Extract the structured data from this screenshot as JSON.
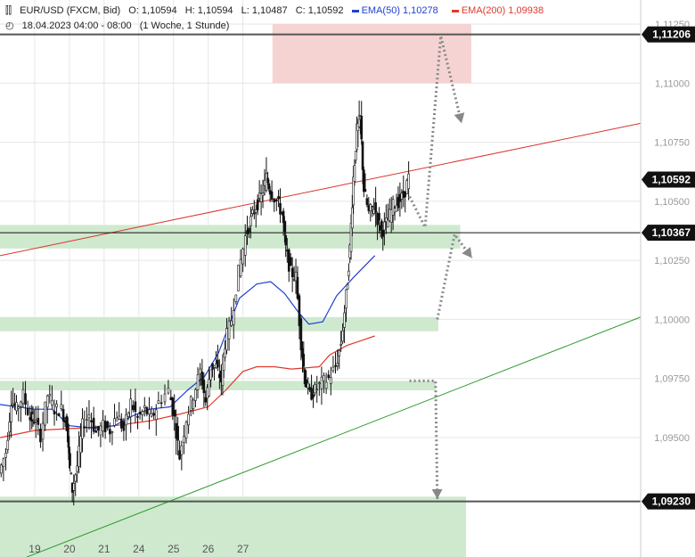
{
  "header": {
    "instrument": "EUR/USD (FXCM, Bid)",
    "open": "O: 1,10594",
    "high": "H: 1,10594",
    "low": "L: 1,10487",
    "close": "C: 1,10592",
    "ema50_label": "EMA(50)",
    "ema50_value": "1,10278",
    "ema200_label": "EMA(200)",
    "ema200_value": "1,09938",
    "timestamp": "18.04.2023 04:00 - 08:00",
    "period": "(1 Woche, 1 Stunde)"
  },
  "colors": {
    "ema50": "#1f3fd1",
    "ema200": "#e0392b",
    "support_zone": "#cfe9cf",
    "resistance_zone": "#f5d3d3",
    "channel_upper": "#d9342b",
    "channel_lower": "#2f9a2f",
    "price_tag": "#111111",
    "projection": "#888888"
  },
  "chart_data": {
    "type": "candlestick",
    "x_tick_labels": [
      "19",
      "20",
      "21",
      "24",
      "25",
      "26",
      "27"
    ],
    "y_tick_labels": [
      "1,11250",
      "1,11000",
      "1,10750",
      "1,10500",
      "1,10250",
      "1,10000",
      "1,09750",
      "1,09500"
    ],
    "ylim": [
      1.0895,
      1.1136
    ],
    "price_tags": [
      {
        "label": "1,11206",
        "value": 1.11206,
        "style": "level"
      },
      {
        "label": "1,10592",
        "value": 1.10592,
        "style": "current"
      },
      {
        "label": "1,10367",
        "value": 1.10367,
        "style": "level"
      },
      {
        "label": "1,09230",
        "value": 1.0923,
        "style": "level"
      }
    ],
    "horizontal_levels": [
      1.11206,
      1.10367,
      1.0923
    ],
    "zones": [
      {
        "kind": "resistance",
        "from": 1.11,
        "to": 1.1125,
        "x_start": 19.85,
        "x_end": 25.58
      },
      {
        "kind": "support",
        "from": 1.103,
        "to": 1.104,
        "x_start": 12.0,
        "x_end": 25.26
      },
      {
        "kind": "support",
        "from": 1.0995,
        "to": 1.1001,
        "x_start": 12.0,
        "x_end": 24.63
      },
      {
        "kind": "support",
        "from": 1.097,
        "to": 1.0974,
        "x_start": 12.0,
        "x_end": 24.55
      },
      {
        "kind": "support",
        "from": 1.0895,
        "to": 1.0925,
        "x_start": 12.0,
        "x_end": 25.43
      }
    ],
    "channel_upper": [
      [
        12.0,
        1.1027
      ],
      [
        30.46,
        1.1083
      ]
    ],
    "channel_lower": [
      [
        12.0,
        1.0895
      ],
      [
        30.46,
        1.1001
      ]
    ],
    "ema50": [
      [
        12.0,
        1.0964
      ],
      [
        13.0,
        1.0962
      ],
      [
        13.5,
        1.0962
      ],
      [
        14.0,
        1.0955
      ],
      [
        14.7,
        1.0954
      ],
      [
        15.3,
        1.0955
      ],
      [
        15.8,
        1.0959
      ],
      [
        16.3,
        1.0962
      ],
      [
        16.9,
        1.0963
      ],
      [
        17.4,
        1.097
      ],
      [
        17.9,
        1.0976
      ],
      [
        18.3,
        1.0986
      ],
      [
        18.9,
        1.1009
      ],
      [
        19.4,
        1.1015
      ],
      [
        19.8,
        1.1016
      ],
      [
        20.2,
        1.1011
      ],
      [
        20.6,
        1.1003
      ],
      [
        20.9,
        1.0998
      ],
      [
        21.3,
        1.0999
      ],
      [
        21.7,
        1.101
      ],
      [
        22.2,
        1.1018
      ],
      [
        22.8,
        1.1027
      ]
    ],
    "ema200": [
      [
        12.0,
        1.095
      ],
      [
        13.0,
        1.0953
      ],
      [
        14.3,
        1.0954
      ],
      [
        15.3,
        1.0955
      ],
      [
        16.3,
        1.0957
      ],
      [
        17.2,
        1.096
      ],
      [
        18.0,
        1.0963
      ],
      [
        18.5,
        1.097
      ],
      [
        19.0,
        1.0978
      ],
      [
        19.4,
        1.098
      ],
      [
        19.9,
        1.098
      ],
      [
        20.4,
        1.0979
      ],
      [
        21.2,
        1.098
      ],
      [
        21.5,
        1.0985
      ],
      [
        22.0,
        1.0989
      ],
      [
        22.8,
        1.0993
      ]
    ],
    "price_path": [
      [
        12.0,
        1.0935
      ],
      [
        12.2,
        1.0944
      ],
      [
        12.35,
        1.0966
      ],
      [
        12.5,
        1.0962
      ],
      [
        12.7,
        1.0968
      ],
      [
        12.9,
        1.0958
      ],
      [
        13.0,
        1.0958
      ],
      [
        13.2,
        1.0951
      ],
      [
        13.4,
        1.0968
      ],
      [
        13.6,
        1.0962
      ],
      [
        13.8,
        1.0962
      ],
      [
        13.95,
        1.0955
      ],
      [
        14.0,
        1.0942
      ],
      [
        14.1,
        1.0928
      ],
      [
        14.25,
        1.0938
      ],
      [
        14.4,
        1.0955
      ],
      [
        14.6,
        1.096
      ],
      [
        14.8,
        1.0952
      ],
      [
        15.0,
        1.0955
      ],
      [
        15.2,
        1.0953
      ],
      [
        15.4,
        1.096
      ],
      [
        15.6,
        1.0953
      ],
      [
        15.8,
        1.0965
      ],
      [
        16.0,
        1.0958
      ],
      [
        16.2,
        1.0962
      ],
      [
        16.4,
        1.0958
      ],
      [
        16.6,
        1.0965
      ],
      [
        16.9,
        1.097
      ],
      [
        17.05,
        1.0958
      ],
      [
        17.2,
        1.0942
      ],
      [
        17.4,
        1.0958
      ],
      [
        17.6,
        1.0968
      ],
      [
        17.8,
        1.0978
      ],
      [
        17.95,
        1.0965
      ],
      [
        18.1,
        1.098
      ],
      [
        18.25,
        1.098
      ],
      [
        18.4,
        1.0974
      ],
      [
        18.5,
        1.099
      ],
      [
        18.7,
        1.1
      ],
      [
        18.9,
        1.102
      ],
      [
        19.1,
        1.1035
      ],
      [
        19.25,
        1.1042
      ],
      [
        19.4,
        1.1048
      ],
      [
        19.55,
        1.1052
      ],
      [
        19.7,
        1.106
      ],
      [
        19.8,
        1.1055
      ],
      [
        20.0,
        1.105
      ],
      [
        20.15,
        1.1045
      ],
      [
        20.25,
        1.103
      ],
      [
        20.4,
        1.102
      ],
      [
        20.55,
        1.1018
      ],
      [
        20.7,
        1.099
      ],
      [
        20.8,
        1.0975
      ],
      [
        20.95,
        1.0968
      ],
      [
        21.1,
        1.097
      ],
      [
        21.3,
        1.0973
      ],
      [
        21.5,
        1.0975
      ],
      [
        21.7,
        1.098
      ],
      [
        21.85,
        1.099
      ],
      [
        22.0,
        1.101
      ],
      [
        22.1,
        1.103
      ],
      [
        22.2,
        1.106
      ],
      [
        22.3,
        1.108
      ],
      [
        22.4,
        1.1085
      ],
      [
        22.5,
        1.1055
      ],
      [
        22.65,
        1.1045
      ],
      [
        22.8,
        1.1048
      ],
      [
        22.95,
        1.104
      ],
      [
        23.05,
        1.1038
      ],
      [
        23.2,
        1.1042
      ],
      [
        23.35,
        1.1048
      ],
      [
        23.5,
        1.105
      ],
      [
        23.65,
        1.1052
      ],
      [
        23.8,
        1.106
      ]
    ],
    "projections": [
      [
        [
          23.8,
          1.1052
        ],
        [
          24.25,
          1.1039
        ],
        [
          24.7,
          1.112
        ],
        [
          25.3,
          1.1083
        ]
      ],
      [
        [
          23.8,
          1.0974
        ],
        [
          24.55,
          1.0974
        ],
        [
          24.6,
          1.0924
        ]
      ],
      [
        [
          24.6,
          1.1
        ],
        [
          25.1,
          1.1036
        ],
        [
          25.6,
          1.1026
        ]
      ]
    ]
  }
}
